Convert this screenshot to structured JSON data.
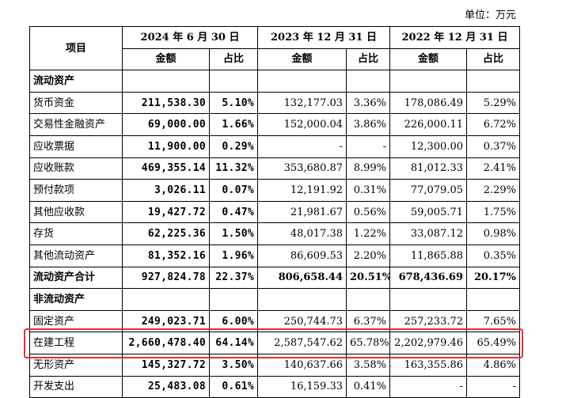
{
  "unit_label": "单位：万元",
  "header": {
    "item_label": "项目",
    "periods": [
      "2024 年 6 月 30 日",
      "2023 年 12 月 31 日",
      "2022 年 12 月 31 日"
    ],
    "amount_label": "金额",
    "ratio_label": "占比"
  },
  "rows": [
    {
      "label": "流动资产",
      "section": true
    },
    {
      "label": "货币资金",
      "values": [
        "211,538.30",
        "5.10%",
        "132,177.03",
        "3.36%",
        "178,086.49",
        "5.29%"
      ]
    },
    {
      "label": "交易性金融资产",
      "values": [
        "69,000.00",
        "1.66%",
        "152,000.04",
        "3.86%",
        "226,000.11",
        "6.72%"
      ]
    },
    {
      "label": "应收票据",
      "values": [
        "11,900.00",
        "0.29%",
        "-",
        "-",
        "12,300.00",
        "0.37%"
      ]
    },
    {
      "label": "应收账款",
      "values": [
        "469,355.14",
        "11.32%",
        "353,680.87",
        "8.99%",
        "81,012.33",
        "2.41%"
      ]
    },
    {
      "label": "预付款项",
      "values": [
        "3,026.11",
        "0.07%",
        "12,191.92",
        "0.31%",
        "77,079.05",
        "2.29%"
      ]
    },
    {
      "label": "其他应收款",
      "values": [
        "19,427.72",
        "0.47%",
        "21,981.67",
        "0.56%",
        "59,005.71",
        "1.75%"
      ]
    },
    {
      "label": "存货",
      "values": [
        "62,225.36",
        "1.50%",
        "48,017.38",
        "1.22%",
        "33,087.12",
        "0.98%"
      ]
    },
    {
      "label": "其他流动资产",
      "values": [
        "81,352.16",
        "1.96%",
        "86,609.53",
        "2.20%",
        "11,865.88",
        "0.35%"
      ]
    },
    {
      "label": "流动资产合计",
      "total": true,
      "values": [
        "927,824.78",
        "22.37%",
        "806,658.44",
        "20.51%",
        "678,436.69",
        "20.17%"
      ]
    },
    {
      "label": "非流动资产",
      "section": true
    },
    {
      "label": "固定资产",
      "values": [
        "249,023.71",
        "6.00%",
        "250,744.73",
        "6.37%",
        "257,233.72",
        "7.65%"
      ]
    },
    {
      "label": "在建工程",
      "highlighted": true,
      "values": [
        "2,660,478.40",
        "64.14%",
        "2,587,547.62",
        "65.78%",
        "2,202,979.46",
        "65.49%"
      ]
    },
    {
      "label": "无形资产",
      "values": [
        "145,327.72",
        "3.50%",
        "140,637.66",
        "3.58%",
        "163,355.86",
        "4.86%"
      ]
    },
    {
      "label": "开发支出",
      "values": [
        "25,483.08",
        "0.61%",
        "16,159.33",
        "0.41%",
        "-",
        "-"
      ]
    }
  ],
  "colors": {
    "highlight_border": "#e3302f"
  }
}
